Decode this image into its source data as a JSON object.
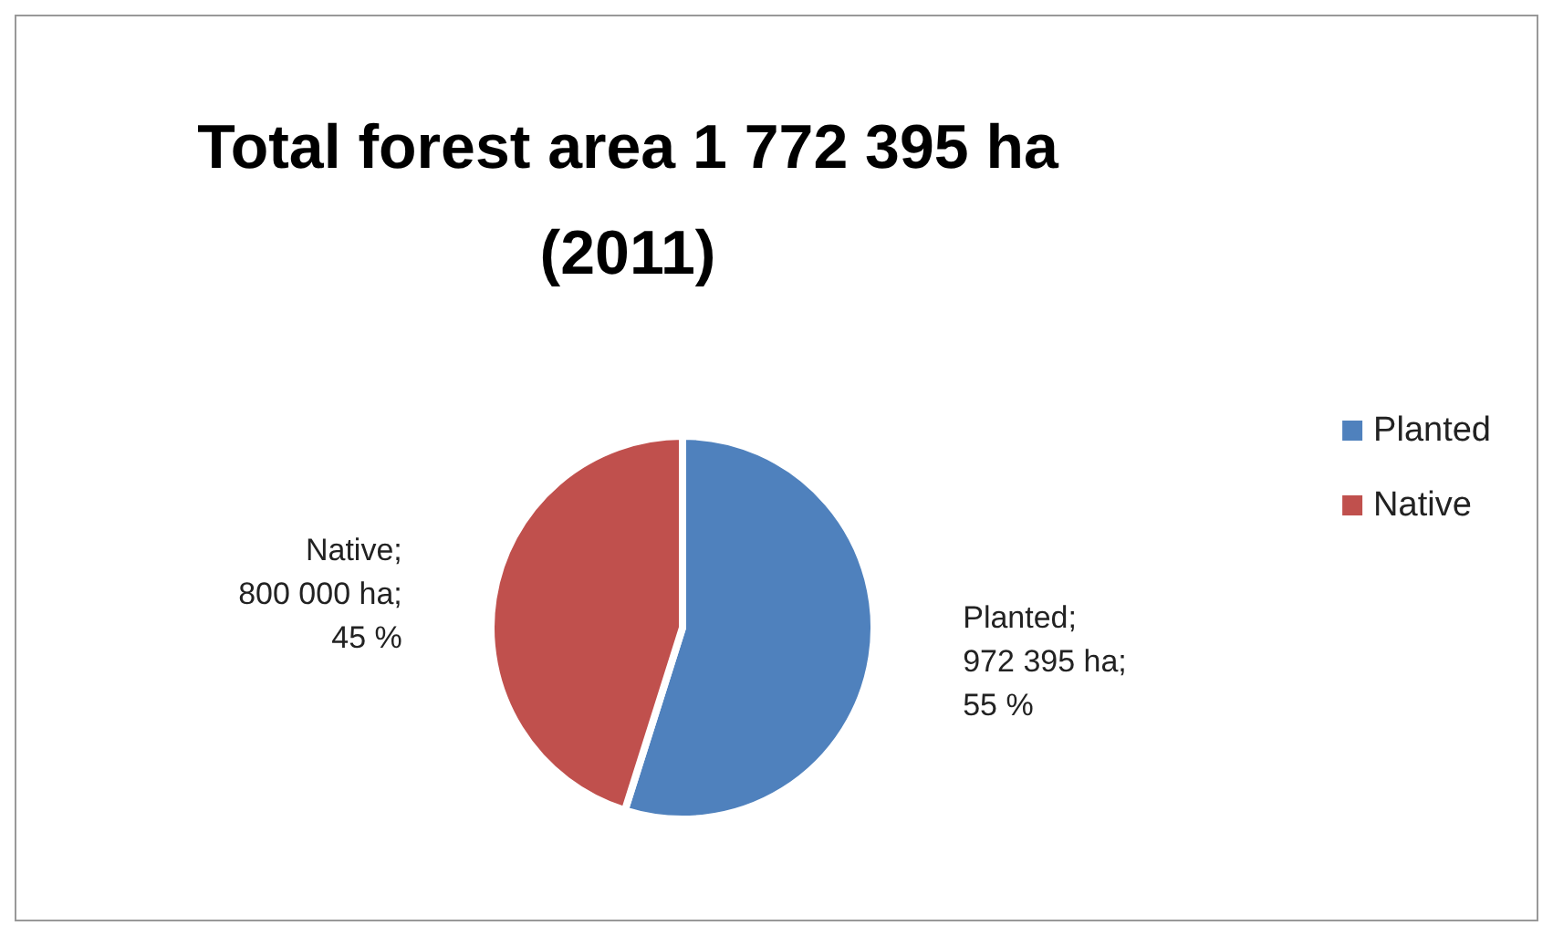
{
  "chart_data": {
    "type": "pie",
    "title": "Total forest area 1 772 395 ha\n(2011)",
    "categories": [
      "Planted",
      "Native"
    ],
    "values": [
      972395,
      800000
    ],
    "colors": [
      "#4f81bd",
      "#c0504d"
    ],
    "value_labels": [
      "Planted;\n972 395 ha;\n55 %",
      "Native;\n800 000 ha;\n45 %"
    ],
    "legend": "right"
  }
}
